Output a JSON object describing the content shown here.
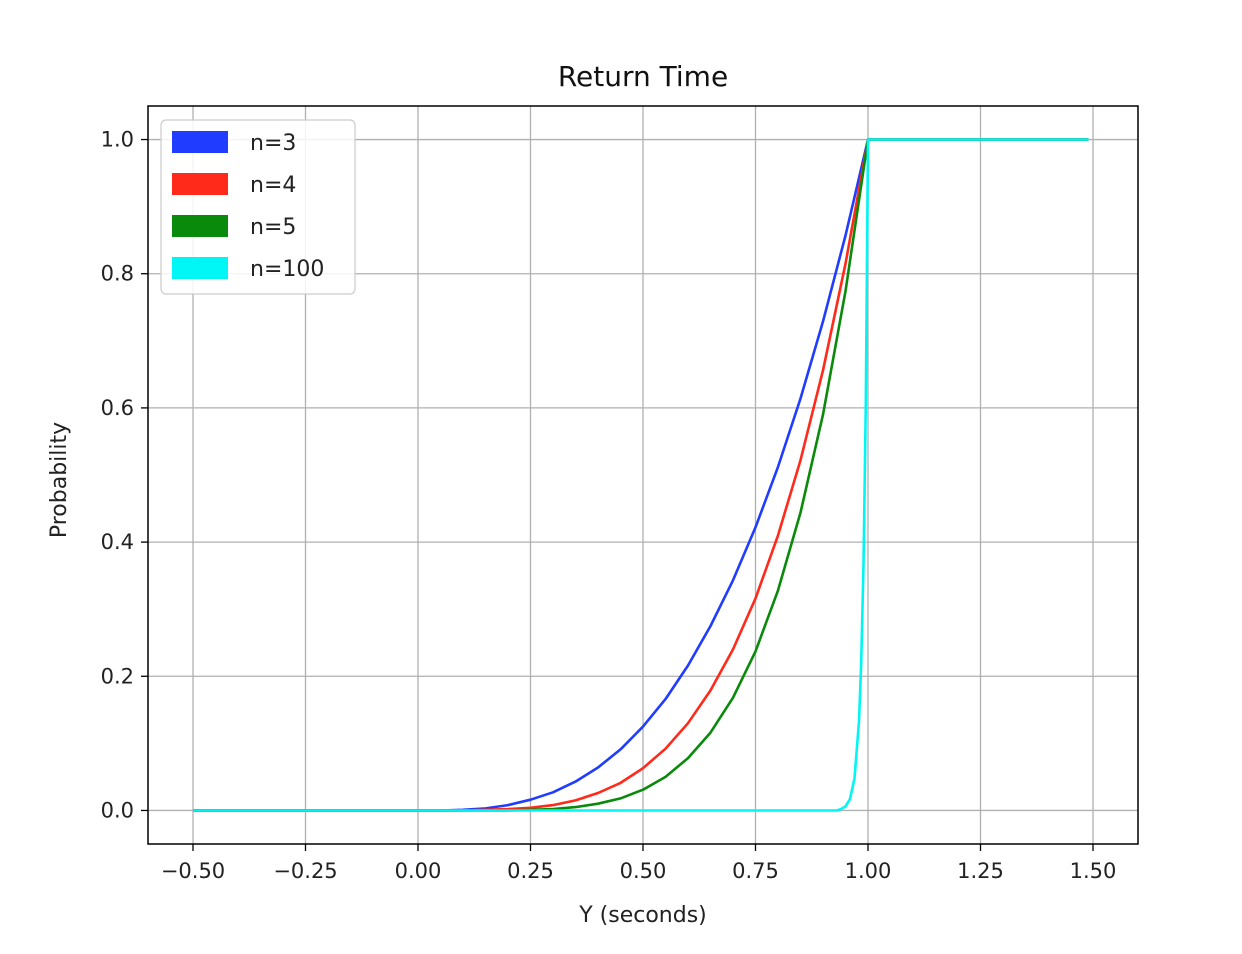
{
  "chart_data": {
    "type": "line",
    "title": "Return Time",
    "xlabel": "Y (seconds)",
    "ylabel": "Probability",
    "xlim": [
      -0.6,
      1.6
    ],
    "ylim": [
      -0.05,
      1.05
    ],
    "xticks": [
      -0.5,
      -0.25,
      0.0,
      0.25,
      0.5,
      0.75,
      1.0,
      1.25,
      1.5
    ],
    "xtick_labels": [
      "−0.50",
      "−0.25",
      "0.00",
      "0.25",
      "0.50",
      "0.75",
      "1.00",
      "1.25",
      "1.50"
    ],
    "yticks": [
      0.0,
      0.2,
      0.4,
      0.6,
      0.8,
      1.0
    ],
    "ytick_labels": [
      "0.0",
      "0.2",
      "0.4",
      "0.6",
      "0.8",
      "1.0"
    ],
    "grid": true,
    "legend_position": "top-left",
    "series": [
      {
        "name": "n=3",
        "color": "#1f3cff",
        "x": [
          -0.5,
          0.0,
          0.05,
          0.1,
          0.15,
          0.2,
          0.25,
          0.3,
          0.35,
          0.4,
          0.45,
          0.5,
          0.55,
          0.6,
          0.65,
          0.7,
          0.75,
          0.8,
          0.85,
          0.9,
          0.95,
          1.0,
          1.49
        ],
        "y": [
          0.0,
          0.0,
          0.0,
          0.001,
          0.003,
          0.008,
          0.016,
          0.027,
          0.043,
          0.064,
          0.091,
          0.125,
          0.166,
          0.216,
          0.275,
          0.343,
          0.422,
          0.512,
          0.614,
          0.729,
          0.857,
          1.0,
          1.0
        ]
      },
      {
        "name": "n=4",
        "color": "#ff2a1a",
        "x": [
          -0.5,
          0.0,
          0.05,
          0.1,
          0.15,
          0.2,
          0.25,
          0.3,
          0.35,
          0.4,
          0.45,
          0.5,
          0.55,
          0.6,
          0.65,
          0.7,
          0.75,
          0.8,
          0.85,
          0.9,
          0.95,
          1.0,
          1.49
        ],
        "y": [
          0.0,
          0.0,
          0.0,
          0.0,
          0.001,
          0.002,
          0.004,
          0.008,
          0.015,
          0.026,
          0.041,
          0.063,
          0.092,
          0.13,
          0.179,
          0.24,
          0.316,
          0.41,
          0.522,
          0.656,
          0.815,
          1.0,
          1.0
        ]
      },
      {
        "name": "n=5",
        "color": "#0a8a0a",
        "x": [
          -0.5,
          0.0,
          0.05,
          0.1,
          0.15,
          0.2,
          0.25,
          0.3,
          0.35,
          0.4,
          0.45,
          0.5,
          0.55,
          0.6,
          0.65,
          0.7,
          0.75,
          0.8,
          0.85,
          0.9,
          0.95,
          1.0,
          1.49
        ],
        "y": [
          0.0,
          0.0,
          0.0,
          0.0,
          0.0,
          0.0,
          0.001,
          0.002,
          0.005,
          0.01,
          0.018,
          0.031,
          0.05,
          0.078,
          0.116,
          0.168,
          0.237,
          0.328,
          0.444,
          0.59,
          0.774,
          1.0,
          1.0
        ]
      },
      {
        "name": "n=100",
        "color": "#00f5f5",
        "x": [
          -0.5,
          0.9,
          0.93,
          0.94,
          0.95,
          0.96,
          0.97,
          0.98,
          0.985,
          0.99,
          0.995,
          1.0,
          1.49
        ],
        "y": [
          0.0,
          0.0,
          0.0,
          0.002,
          0.006,
          0.017,
          0.048,
          0.133,
          0.22,
          0.366,
          0.606,
          1.0,
          1.0
        ]
      }
    ]
  }
}
